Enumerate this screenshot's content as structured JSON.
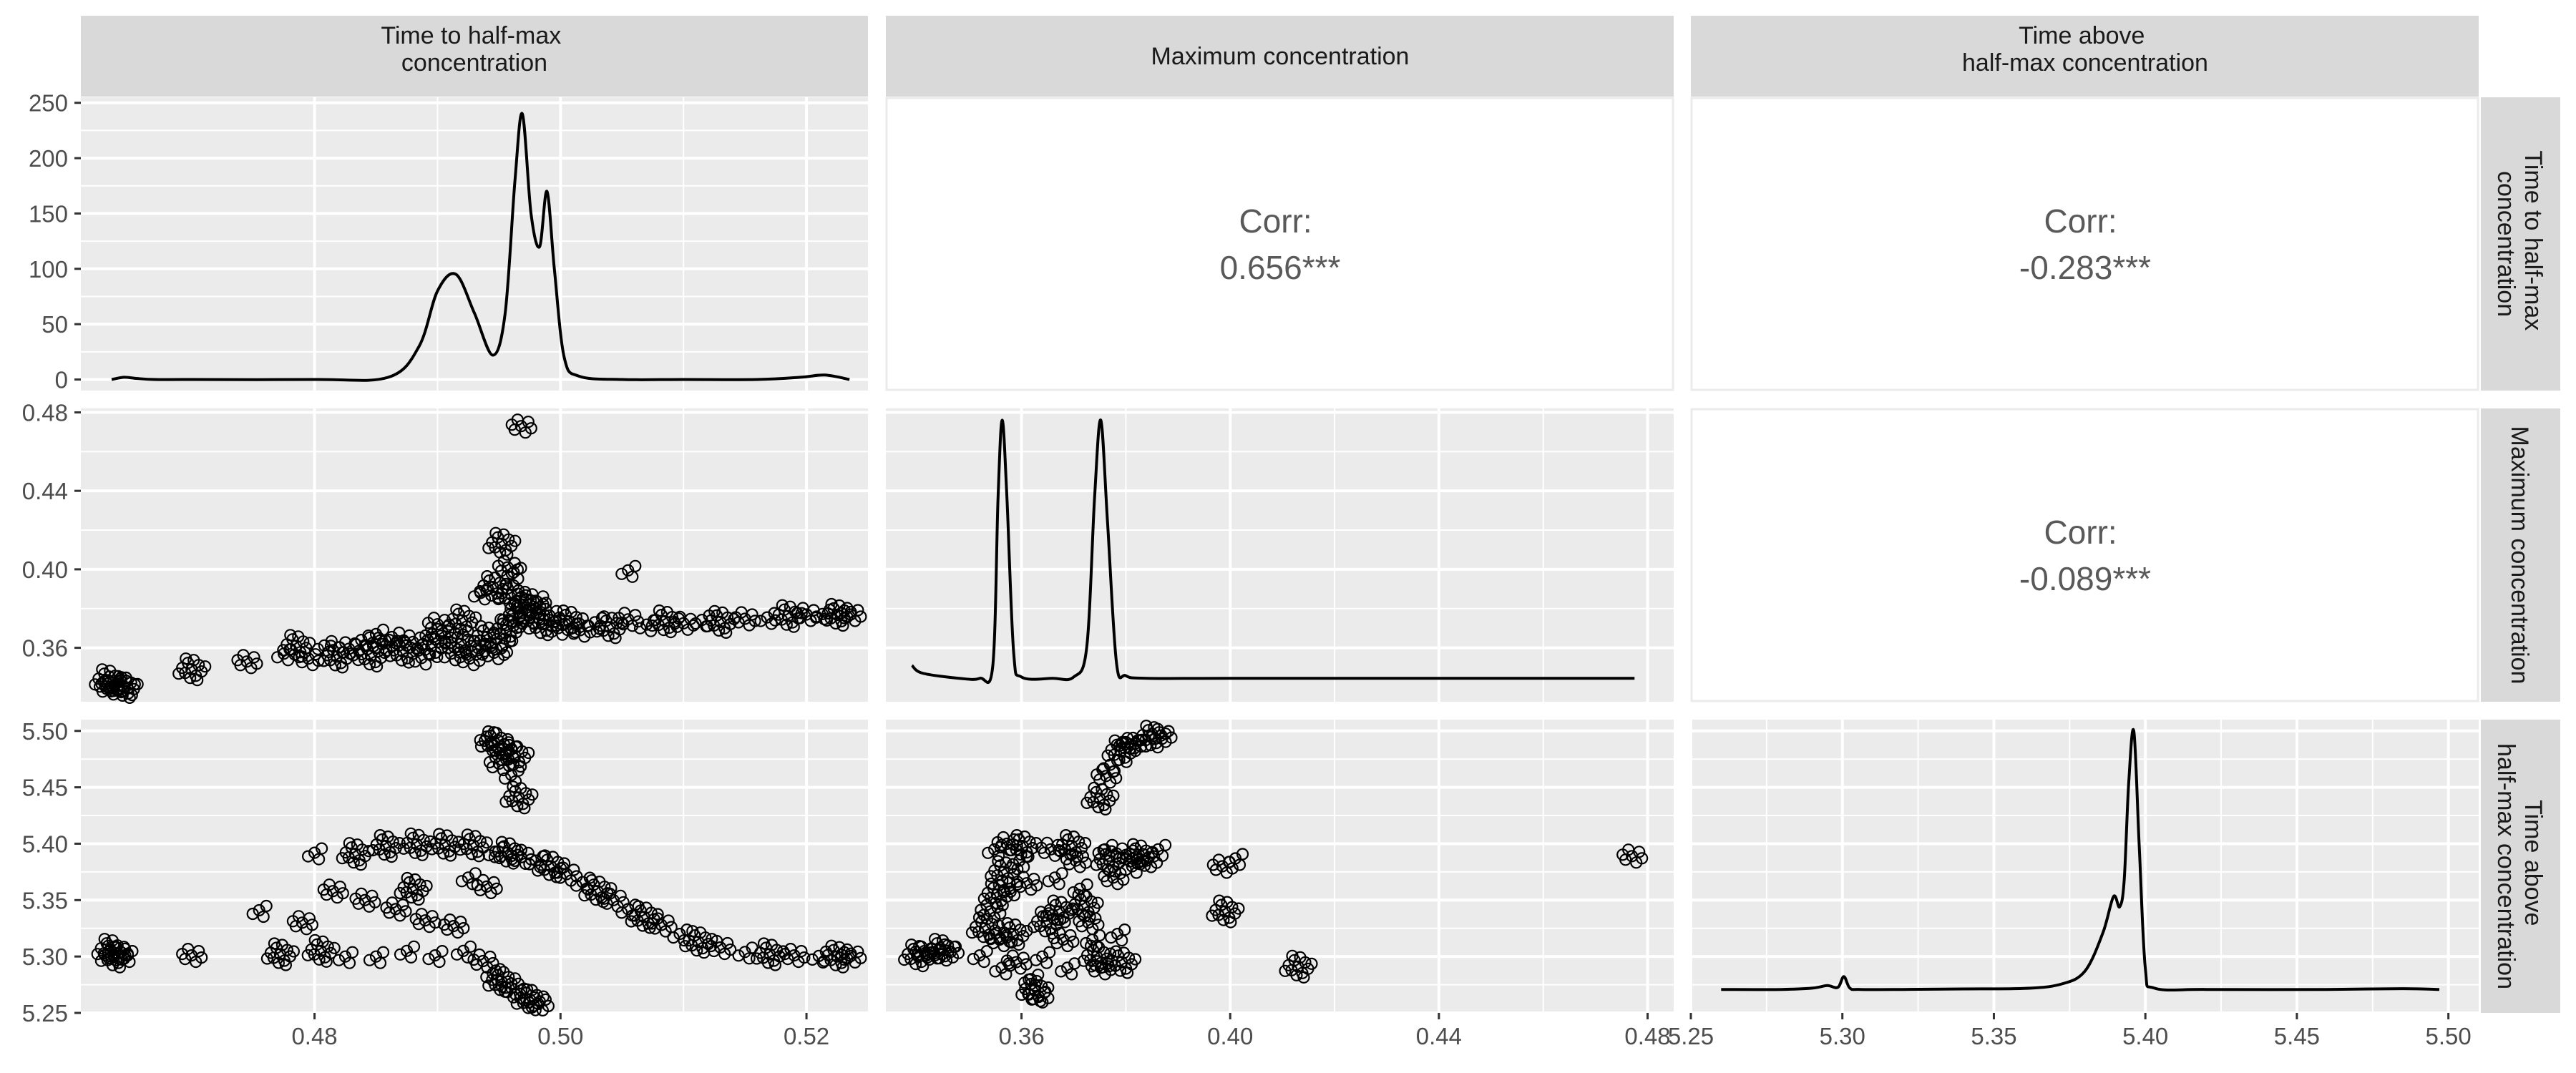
{
  "chart_data": {
    "type": "scatter",
    "variables": [
      "Time to half-max\nconcentration",
      "Maximum concentration",
      "Time above\nhalf-max concentration"
    ],
    "row_strip_labels": [
      "Time to half-max\nconcentration",
      "Maximum concentration",
      "Time above\nhalf-max concentration"
    ],
    "x_axes": [
      {
        "variable": 0,
        "lim": [
          0.461,
          0.525
        ],
        "ticks": [
          0.48,
          0.5,
          0.52
        ],
        "tick_labels": [
          "0.48",
          "0.50",
          "0.52"
        ]
      },
      {
        "variable": 1,
        "lim": [
          0.334,
          0.485
        ],
        "ticks": [
          0.36,
          0.4,
          0.44,
          0.48
        ],
        "tick_labels": [
          "0.36",
          "0.40",
          "0.44",
          "0.48"
        ]
      },
      {
        "variable": 2,
        "lim": [
          5.25,
          5.51
        ],
        "ticks": [
          5.25,
          5.3,
          5.35,
          5.4,
          5.45,
          5.5
        ],
        "tick_labels": [
          "5.25",
          "5.30",
          "5.35",
          "5.40",
          "5.45",
          "5.50"
        ]
      }
    ],
    "y_axes": [
      {
        "row": 0,
        "lim": [
          -10,
          255
        ],
        "ticks": [
          0,
          50,
          100,
          150,
          200,
          250
        ],
        "tick_labels": [
          "0",
          "50",
          "100",
          "150",
          "200",
          "250"
        ]
      },
      {
        "row": 1,
        "lim": [
          0.3325,
          0.482
        ],
        "ticks": [
          0.36,
          0.4,
          0.44,
          0.48
        ],
        "tick_labels": [
          "0.36",
          "0.40",
          "0.44",
          "0.48"
        ]
      },
      {
        "row": 2,
        "lim": [
          5.25,
          5.51
        ],
        "ticks": [
          5.25,
          5.3,
          5.35,
          5.4,
          5.45,
          5.5
        ],
        "tick_labels": [
          "5.25",
          "5.30",
          "5.35",
          "5.40",
          "5.45",
          "5.50"
        ]
      }
    ],
    "correlations": [
      {
        "row": 0,
        "col": 1,
        "label": "Corr:",
        "value": "0.656***"
      },
      {
        "row": 0,
        "col": 2,
        "label": "Corr:",
        "value": "-0.283***"
      },
      {
        "row": 1,
        "col": 2,
        "label": "Corr:",
        "value": "-0.089***"
      }
    ],
    "densities": [
      {
        "variable": 0,
        "x": [
          0.4635,
          0.4645,
          0.4655,
          0.467,
          0.47,
          0.48,
          0.486,
          0.4885,
          0.49,
          0.4915,
          0.493,
          0.4945,
          0.4955,
          0.4963,
          0.4969,
          0.4976,
          0.4983,
          0.4989,
          0.4995,
          0.5003,
          0.5015,
          0.505,
          0.51,
          0.516,
          0.5195,
          0.5215,
          0.5235
        ],
        "y": [
          0,
          2,
          1,
          0,
          0,
          0,
          2,
          30,
          80,
          95,
          60,
          22,
          60,
          180,
          240,
          150,
          120,
          170,
          100,
          20,
          3,
          0,
          0,
          0,
          2,
          4,
          0
        ]
      },
      {
        "variable": 1,
        "x": [
          0.339,
          0.341,
          0.348,
          0.352,
          0.3545,
          0.3555,
          0.3563,
          0.3572,
          0.3585,
          0.36,
          0.366,
          0.37,
          0.3725,
          0.374,
          0.3752,
          0.3765,
          0.3782,
          0.38,
          0.384,
          0.4,
          0.43,
          0.46,
          0.4775
        ],
        "y": [
          0.05,
          0.02,
          0,
          0,
          0.05,
          0.7,
          1.0,
          0.7,
          0.1,
          0.005,
          0,
          0.005,
          0.12,
          0.7,
          1.0,
          0.6,
          0.06,
          0.01,
          0,
          0,
          0,
          0,
          0
        ]
      },
      {
        "variable": 2,
        "x": [
          5.26,
          5.28,
          5.29,
          5.295,
          5.2985,
          5.3005,
          5.3025,
          5.306,
          5.32,
          5.34,
          5.36,
          5.372,
          5.38,
          5.386,
          5.3895,
          5.3915,
          5.393,
          5.3945,
          5.3962,
          5.398,
          5.4,
          5.403,
          5.42,
          5.46,
          5.485,
          5.497
        ],
        "y": [
          0,
          0,
          0.005,
          0.015,
          0.008,
          0.05,
          0.005,
          0,
          0,
          0.002,
          0.004,
          0.02,
          0.07,
          0.22,
          0.36,
          0.32,
          0.42,
          0.8,
          1.0,
          0.55,
          0.08,
          0.005,
          0,
          0,
          0.003,
          0
        ]
      }
    ],
    "scatter_panels": [
      {
        "row": 1,
        "col": 0,
        "xvar": 0,
        "yvar": 1,
        "points": [
          [
            0.4632,
            0.3435
          ],
          [
            0.4636,
            0.342
          ],
          [
            0.4641,
            0.341
          ],
          [
            0.4645,
            0.34
          ],
          [
            0.4633,
            0.3395
          ],
          [
            0.4648,
            0.3392
          ],
          [
            0.47,
            0.349
          ],
          [
            0.4745,
            0.353
          ],
          [
            0.4775,
            0.357
          ],
          [
            0.4785,
            0.361
          ],
          [
            0.4795,
            0.3545
          ],
          [
            0.4808,
            0.3612
          ],
          [
            0.4818,
            0.3555
          ],
          [
            0.4828,
            0.3595
          ],
          [
            0.4838,
            0.364
          ],
          [
            0.4846,
            0.356
          ],
          [
            0.4855,
            0.3618
          ],
          [
            0.4863,
            0.3655
          ],
          [
            0.4872,
            0.358
          ],
          [
            0.488,
            0.363
          ],
          [
            0.4887,
            0.3548
          ],
          [
            0.4895,
            0.3608
          ],
          [
            0.4903,
            0.3662
          ],
          [
            0.4911,
            0.357
          ],
          [
            0.4919,
            0.362
          ],
          [
            0.4926,
            0.3545
          ],
          [
            0.4933,
            0.3598
          ],
          [
            0.494,
            0.3655
          ],
          [
            0.4946,
            0.3575
          ],
          [
            0.4953,
            0.361
          ],
          [
            0.4956,
            0.369
          ],
          [
            0.4961,
            0.3735
          ],
          [
            0.4966,
            0.3782
          ],
          [
            0.497,
            0.382
          ],
          [
            0.4975,
            0.3755
          ],
          [
            0.498,
            0.38
          ],
          [
            0.4985,
            0.372
          ],
          [
            0.4991,
            0.3765
          ],
          [
            0.4998,
            0.37
          ],
          [
            0.5007,
            0.3735
          ],
          [
            0.5016,
            0.369
          ],
          [
            0.5028,
            0.373
          ],
          [
            0.504,
            0.3705
          ],
          [
            0.5055,
            0.3745
          ],
          [
            0.507,
            0.3718
          ],
          [
            0.5085,
            0.3735
          ],
          [
            0.51,
            0.3725
          ],
          [
            0.5115,
            0.3742
          ],
          [
            0.513,
            0.3732
          ],
          [
            0.515,
            0.3748
          ],
          [
            0.5168,
            0.3755
          ],
          [
            0.5185,
            0.3762
          ],
          [
            0.52,
            0.377
          ],
          [
            0.5213,
            0.3772
          ],
          [
            0.5225,
            0.3768
          ],
          [
            0.5236,
            0.377
          ],
          [
            0.4935,
            0.388
          ],
          [
            0.4945,
            0.391
          ],
          [
            0.4957,
            0.401
          ],
          [
            0.4962,
            0.3985
          ],
          [
            0.4952,
            0.413
          ],
          [
            0.4968,
            0.473
          ],
          [
            0.5055,
            0.3995
          ],
          [
            0.492,
            0.374
          ],
          [
            0.49,
            0.372
          ],
          [
            0.485,
            0.367
          ],
          [
            0.496,
            0.387
          ],
          [
            0.498,
            0.384
          ]
        ]
      },
      {
        "row": 2,
        "col": 0,
        "xvar": 0,
        "yvar": 2,
        "points": [
          [
            0.4634,
            5.306
          ],
          [
            0.464,
            5.303
          ],
          [
            0.4646,
            5.301
          ],
          [
            0.4637,
            5.3
          ],
          [
            0.47,
            5.301
          ],
          [
            0.4755,
            5.341
          ],
          [
            0.4772,
            5.302
          ],
          [
            0.479,
            5.33
          ],
          [
            0.48,
            5.392
          ],
          [
            0.4805,
            5.305
          ],
          [
            0.4815,
            5.358
          ],
          [
            0.4825,
            5.3
          ],
          [
            0.4833,
            5.391
          ],
          [
            0.4841,
            5.35
          ],
          [
            0.485,
            5.3
          ],
          [
            0.4858,
            5.398
          ],
          [
            0.4866,
            5.342
          ],
          [
            0.4875,
            5.305
          ],
          [
            0.4883,
            5.3995
          ],
          [
            0.489,
            5.332
          ],
          [
            0.4898,
            5.301
          ],
          [
            0.4906,
            5.399
          ],
          [
            0.4913,
            5.327
          ],
          [
            0.4921,
            5.305
          ],
          [
            0.4929,
            5.3985
          ],
          [
            0.4937,
            5.296
          ],
          [
            0.4945,
            5.285
          ],
          [
            0.4952,
            5.278
          ],
          [
            0.496,
            5.272
          ],
          [
            0.4967,
            5.267
          ],
          [
            0.4975,
            5.262
          ],
          [
            0.4982,
            5.258
          ],
          [
            0.4947,
            5.393
          ],
          [
            0.4957,
            5.392
          ],
          [
            0.4968,
            5.388
          ],
          [
            0.498,
            5.385
          ],
          [
            0.4992,
            5.38
          ],
          [
            0.5005,
            5.373
          ],
          [
            0.5018,
            5.366
          ],
          [
            0.503,
            5.358
          ],
          [
            0.5043,
            5.35
          ],
          [
            0.5055,
            5.342
          ],
          [
            0.5068,
            5.335
          ],
          [
            0.5082,
            5.328
          ],
          [
            0.5097,
            5.32
          ],
          [
            0.5112,
            5.313
          ],
          [
            0.513,
            5.308
          ],
          [
            0.515,
            5.304
          ],
          [
            0.517,
            5.302
          ],
          [
            0.519,
            5.301
          ],
          [
            0.521,
            5.3005
          ],
          [
            0.5225,
            5.3
          ],
          [
            0.5236,
            5.3005
          ],
          [
            0.494,
            5.495
          ],
          [
            0.4946,
            5.49
          ],
          [
            0.4952,
            5.486
          ],
          [
            0.4958,
            5.482
          ],
          [
            0.4963,
            5.478
          ],
          [
            0.495,
            5.471
          ],
          [
            0.496,
            5.461
          ],
          [
            0.4966,
            5.441
          ],
          [
            0.494,
            5.362
          ],
          [
            0.4925,
            5.37
          ],
          [
            0.488,
            5.36
          ]
        ]
      },
      {
        "row": 2,
        "col": 1,
        "xvar": 1,
        "yvar": 2,
        "points": [
          [
            0.34,
            5.301
          ],
          [
            0.3415,
            5.303
          ],
          [
            0.343,
            5.304
          ],
          [
            0.3445,
            5.306
          ],
          [
            0.346,
            5.305
          ],
          [
            0.352,
            5.301
          ],
          [
            0.353,
            5.325
          ],
          [
            0.354,
            5.34
          ],
          [
            0.3548,
            5.395
          ],
          [
            0.3553,
            5.355
          ],
          [
            0.3558,
            5.315
          ],
          [
            0.3562,
            5.29
          ],
          [
            0.3566,
            5.375
          ],
          [
            0.3572,
            5.4
          ],
          [
            0.3578,
            5.36
          ],
          [
            0.3584,
            5.32
          ],
          [
            0.359,
            5.295
          ],
          [
            0.3596,
            5.385
          ],
          [
            0.3602,
            5.398
          ],
          [
            0.361,
            5.365
          ],
          [
            0.3618,
            5.28
          ],
          [
            0.3625,
            5.27
          ],
          [
            0.3632,
            5.265
          ],
          [
            0.364,
            5.3
          ],
          [
            0.3648,
            5.33
          ],
          [
            0.3656,
            5.395
          ],
          [
            0.3664,
            5.37
          ],
          [
            0.3672,
            5.34
          ],
          [
            0.368,
            5.315
          ],
          [
            0.3688,
            5.29
          ],
          [
            0.3696,
            5.398
          ],
          [
            0.3704,
            5.385
          ],
          [
            0.3712,
            5.36
          ],
          [
            0.372,
            5.345
          ],
          [
            0.3728,
            5.33
          ],
          [
            0.3736,
            5.315
          ],
          [
            0.3744,
            5.3
          ],
          [
            0.3752,
            5.29
          ],
          [
            0.376,
            5.395
          ],
          [
            0.3768,
            5.385
          ],
          [
            0.3776,
            5.37
          ],
          [
            0.3784,
            5.32
          ],
          [
            0.3792,
            5.295
          ],
          [
            0.38,
            5.39
          ],
          [
            0.3812,
            5.38
          ],
          [
            0.3825,
            5.39
          ],
          [
            0.384,
            5.385
          ],
          [
            0.3862,
            5.395
          ],
          [
            0.375,
            5.44
          ],
          [
            0.3762,
            5.46
          ],
          [
            0.377,
            5.47
          ],
          [
            0.379,
            5.482
          ],
          [
            0.381,
            5.488
          ],
          [
            0.383,
            5.492
          ],
          [
            0.385,
            5.495
          ],
          [
            0.3868,
            5.496
          ],
          [
            0.38,
            5.49
          ],
          [
            0.399,
            5.34
          ],
          [
            0.3985,
            5.38
          ],
          [
            0.401,
            5.387
          ],
          [
            0.413,
            5.291
          ],
          [
            0.477,
            5.389
          ]
        ]
      }
    ]
  }
}
